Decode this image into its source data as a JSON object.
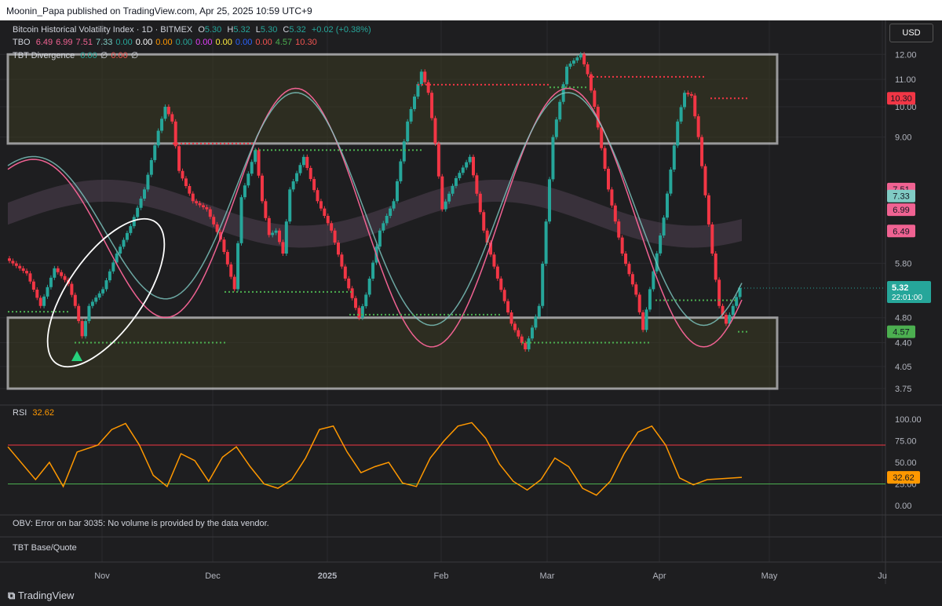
{
  "header": {
    "published": "Moonin_Papa published on TradingView.com, Apr 25, 2025 10:59 UTC+9"
  },
  "currency_button": "USD",
  "legend": {
    "title": "Bitcoin Historical Volatility Index · 1D · BITMEX",
    "o_label": "O",
    "o_val": "5.30",
    "h_label": "H",
    "h_val": "5.32",
    "l_label": "L",
    "l_val": "5.30",
    "c_label": "C",
    "c_val": "5.32",
    "change": "+0.02 (+0.38%)",
    "tbo_label": "TBO",
    "tbo_values": [
      {
        "v": "6.49",
        "color": "#f06292"
      },
      {
        "v": "6.99",
        "color": "#f06292"
      },
      {
        "v": "7.51",
        "color": "#f06292"
      },
      {
        "v": "7.33",
        "color": "#80cbc4"
      },
      {
        "v": "0.00",
        "color": "#26a69a"
      },
      {
        "v": "0.00",
        "color": "#ffffff"
      },
      {
        "v": "0.00",
        "color": "#ff9800"
      },
      {
        "v": "0.00",
        "color": "#26a69a"
      },
      {
        "v": "0.00",
        "color": "#e040fb"
      },
      {
        "v": "0.00",
        "color": "#ffeb3b"
      },
      {
        "v": "0.00",
        "color": "#2962ff"
      },
      {
        "v": "0.00",
        "color": "#ef5350"
      },
      {
        "v": "4.57",
        "color": "#4caf50"
      },
      {
        "v": "10.30",
        "color": "#ef5350"
      }
    ],
    "div_label": "TBT Divergence",
    "div_values": [
      {
        "v": "0.00",
        "color": "#26a69a"
      },
      {
        "v": "∅",
        "color": "#d1d4dc"
      },
      {
        "v": "0.00",
        "color": "#ef5350"
      },
      {
        "v": "∅",
        "color": "#d1d4dc"
      }
    ],
    "rsi_label": "RSI",
    "rsi_val": "32.62",
    "obv_error": "OBV: Error on bar 3035: No volume is provided by the data vendor.",
    "tbt_label": "TBT Base/Quote"
  },
  "brand": "TradingView",
  "colors": {
    "up": "#26a69a",
    "down": "#f23645",
    "bg": "#1e1e20",
    "grid": "#2a2a2e",
    "rsi": "#ff9800",
    "box": "#ffffff",
    "greenline": "#4caf50",
    "redline": "#f23645"
  },
  "chart_data": {
    "type": "candlestick",
    "title": "Bitcoin Historical Volatility Index · 1D · BITMEX",
    "x_tick_labels": [
      "Nov",
      "Dec",
      "2025",
      "Feb",
      "Mar",
      "Apr",
      "May",
      "Ju"
    ],
    "y_ticks": [
      3.75,
      4.05,
      4.4,
      4.8,
      5.8,
      9.0,
      10.0,
      11.0,
      12.0
    ],
    "y_scale": "log",
    "y_range": [
      3.6,
      13.0
    ],
    "last_price": {
      "value": 5.32,
      "label": "5.32",
      "countdown": "22:01:00"
    },
    "price_labels": [
      {
        "text": "10.30",
        "value": 10.3,
        "color": "#f23645"
      },
      {
        "text": "7.51",
        "value": 7.51,
        "color": "#f06292"
      },
      {
        "text": "7.33",
        "value": 7.33,
        "color": "#80cbc4"
      },
      {
        "text": "6.99",
        "value": 6.99,
        "color": "#f06292"
      },
      {
        "text": "6.49",
        "value": 6.49,
        "color": "#f06292"
      },
      {
        "text": "4.57",
        "value": 4.57,
        "color": "#4caf50"
      }
    ],
    "boxes": [
      {
        "top": 12.0,
        "bottom": 8.8
      },
      {
        "top": 4.8,
        "bottom": 3.75
      }
    ],
    "close_path": [
      [
        0,
        5.9
      ],
      [
        6,
        5.6
      ],
      [
        10,
        5.0
      ],
      [
        14,
        5.7
      ],
      [
        18,
        5.4
      ],
      [
        20,
        5.0
      ],
      [
        22,
        4.5
      ],
      [
        24,
        5.0
      ],
      [
        28,
        5.3
      ],
      [
        32,
        6.0
      ],
      [
        36,
        6.6
      ],
      [
        40,
        7.5
      ],
      [
        44,
        9.2
      ],
      [
        46,
        10.0
      ],
      [
        48,
        9.5
      ],
      [
        50,
        8.0
      ],
      [
        54,
        7.2
      ],
      [
        58,
        7.0
      ],
      [
        62,
        6.3
      ],
      [
        66,
        5.3
      ],
      [
        68,
        7.3
      ],
      [
        72,
        8.6
      ],
      [
        74,
        7.2
      ],
      [
        76,
        6.4
      ],
      [
        78,
        6.5
      ],
      [
        80,
        6.0
      ],
      [
        82,
        7.5
      ],
      [
        86,
        8.4
      ],
      [
        90,
        7.2
      ],
      [
        94,
        6.5
      ],
      [
        98,
        5.5
      ],
      [
        102,
        4.8
      ],
      [
        104,
        5.2
      ],
      [
        108,
        6.5
      ],
      [
        112,
        7.2
      ],
      [
        116,
        9.5
      ],
      [
        120,
        11.3
      ],
      [
        122,
        10.5
      ],
      [
        124,
        8.8
      ],
      [
        126,
        7.0
      ],
      [
        130,
        7.8
      ],
      [
        134,
        8.4
      ],
      [
        138,
        6.5
      ],
      [
        142,
        5.5
      ],
      [
        146,
        4.7
      ],
      [
        150,
        4.3
      ],
      [
        154,
        5.0
      ],
      [
        158,
        9.0
      ],
      [
        162,
        11.5
      ],
      [
        166,
        12.0
      ],
      [
        168,
        11.2
      ],
      [
        170,
        10.0
      ],
      [
        174,
        7.5
      ],
      [
        178,
        6.0
      ],
      [
        182,
        5.2
      ],
      [
        184,
        4.6
      ],
      [
        186,
        5.3
      ],
      [
        190,
        6.8
      ],
      [
        194,
        9.5
      ],
      [
        196,
        10.5
      ],
      [
        198,
        10.4
      ],
      [
        200,
        9.0
      ],
      [
        204,
        6.0
      ],
      [
        206,
        5.0
      ],
      [
        208,
        4.7
      ],
      [
        212,
        5.32
      ]
    ],
    "rsi": {
      "label": "RSI",
      "value": 32.62,
      "overbought": 70,
      "oversold": 25,
      "y_ticks": [
        0,
        25,
        50,
        75,
        100
      ],
      "series": [
        [
          0,
          68
        ],
        [
          8,
          30
        ],
        [
          12,
          50
        ],
        [
          16,
          22
        ],
        [
          20,
          62
        ],
        [
          26,
          70
        ],
        [
          30,
          88
        ],
        [
          34,
          95
        ],
        [
          38,
          70
        ],
        [
          42,
          35
        ],
        [
          46,
          22
        ],
        [
          50,
          60
        ],
        [
          54,
          52
        ],
        [
          58,
          28
        ],
        [
          62,
          56
        ],
        [
          66,
          68
        ],
        [
          70,
          45
        ],
        [
          74,
          25
        ],
        [
          78,
          20
        ],
        [
          82,
          30
        ],
        [
          86,
          55
        ],
        [
          90,
          88
        ],
        [
          94,
          92
        ],
        [
          98,
          62
        ],
        [
          102,
          38
        ],
        [
          106,
          45
        ],
        [
          110,
          50
        ],
        [
          114,
          26
        ],
        [
          118,
          22
        ],
        [
          122,
          55
        ],
        [
          126,
          75
        ],
        [
          130,
          92
        ],
        [
          134,
          96
        ],
        [
          138,
          78
        ],
        [
          142,
          48
        ],
        [
          146,
          28
        ],
        [
          150,
          18
        ],
        [
          154,
          30
        ],
        [
          158,
          55
        ],
        [
          162,
          45
        ],
        [
          166,
          20
        ],
        [
          170,
          12
        ],
        [
          174,
          28
        ],
        [
          178,
          60
        ],
        [
          182,
          85
        ],
        [
          186,
          92
        ],
        [
          190,
          70
        ],
        [
          194,
          32
        ],
        [
          198,
          24
        ],
        [
          202,
          30
        ],
        [
          212,
          32.62
        ]
      ]
    }
  }
}
